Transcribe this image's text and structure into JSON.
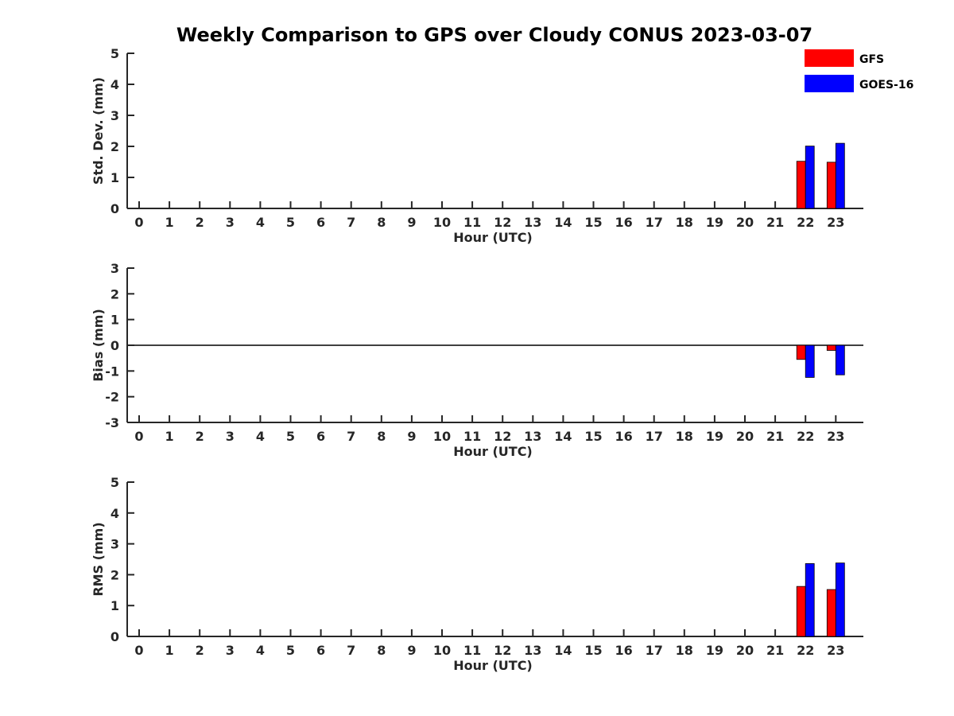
{
  "title": "Weekly Comparison to GPS over Cloudy CONUS 2023-03-07",
  "legend": {
    "placement": "top-right",
    "items": [
      {
        "label": "GFS",
        "color": "#ff0000"
      },
      {
        "label": "GOES-16",
        "color": "#0000ff"
      }
    ]
  },
  "chart_data": [
    {
      "type": "bar",
      "xlabel": "Hour (UTC)",
      "ylabel": "Std. Dev. (mm)",
      "ylim": [
        0,
        5
      ],
      "yticks": [
        "0",
        "1",
        "2",
        "3",
        "4",
        "5"
      ],
      "categories": [
        "0",
        "1",
        "2",
        "3",
        "4",
        "5",
        "6",
        "7",
        "8",
        "9",
        "10",
        "11",
        "12",
        "13",
        "14",
        "15",
        "16",
        "17",
        "18",
        "19",
        "20",
        "21",
        "22",
        "23"
      ],
      "series": [
        {
          "name": "GFS",
          "color": "#ff0000",
          "values": [
            null,
            null,
            null,
            null,
            null,
            null,
            null,
            null,
            null,
            null,
            null,
            null,
            null,
            null,
            null,
            null,
            null,
            null,
            null,
            null,
            null,
            null,
            1.52,
            1.49
          ]
        },
        {
          "name": "GOES-16",
          "color": "#0000ff",
          "values": [
            null,
            null,
            null,
            null,
            null,
            null,
            null,
            null,
            null,
            null,
            null,
            null,
            null,
            null,
            null,
            null,
            null,
            null,
            null,
            null,
            null,
            null,
            2.01,
            2.1
          ]
        }
      ]
    },
    {
      "type": "bar",
      "xlabel": "Hour (UTC)",
      "ylabel": "Bias (mm)",
      "ylim": [
        -3,
        3
      ],
      "yticks": [
        "-3",
        "-2",
        "-1",
        "0",
        "1",
        "2",
        "3"
      ],
      "zero_line": true,
      "categories": [
        "0",
        "1",
        "2",
        "3",
        "4",
        "5",
        "6",
        "7",
        "8",
        "9",
        "10",
        "11",
        "12",
        "13",
        "14",
        "15",
        "16",
        "17",
        "18",
        "19",
        "20",
        "21",
        "22",
        "23"
      ],
      "series": [
        {
          "name": "GFS",
          "color": "#ff0000",
          "values": [
            null,
            null,
            null,
            null,
            null,
            null,
            null,
            null,
            null,
            null,
            null,
            null,
            null,
            null,
            null,
            null,
            null,
            null,
            null,
            null,
            null,
            null,
            -0.55,
            -0.2
          ]
        },
        {
          "name": "GOES-16",
          "color": "#0000ff",
          "values": [
            null,
            null,
            null,
            null,
            null,
            null,
            null,
            null,
            null,
            null,
            null,
            null,
            null,
            null,
            null,
            null,
            null,
            null,
            null,
            null,
            null,
            null,
            -1.25,
            -1.15
          ]
        }
      ]
    },
    {
      "type": "bar",
      "xlabel": "Hour (UTC)",
      "ylabel": "RMS (mm)",
      "ylim": [
        0,
        5
      ],
      "yticks": [
        "0",
        "1",
        "2",
        "3",
        "4",
        "5"
      ],
      "categories": [
        "0",
        "1",
        "2",
        "3",
        "4",
        "5",
        "6",
        "7",
        "8",
        "9",
        "10",
        "11",
        "12",
        "13",
        "14",
        "15",
        "16",
        "17",
        "18",
        "19",
        "20",
        "21",
        "22",
        "23"
      ],
      "series": [
        {
          "name": "GFS",
          "color": "#ff0000",
          "values": [
            null,
            null,
            null,
            null,
            null,
            null,
            null,
            null,
            null,
            null,
            null,
            null,
            null,
            null,
            null,
            null,
            null,
            null,
            null,
            null,
            null,
            null,
            1.62,
            1.52
          ]
        },
        {
          "name": "GOES-16",
          "color": "#0000ff",
          "values": [
            null,
            null,
            null,
            null,
            null,
            null,
            null,
            null,
            null,
            null,
            null,
            null,
            null,
            null,
            null,
            null,
            null,
            null,
            null,
            null,
            null,
            null,
            2.36,
            2.38
          ]
        }
      ]
    }
  ]
}
